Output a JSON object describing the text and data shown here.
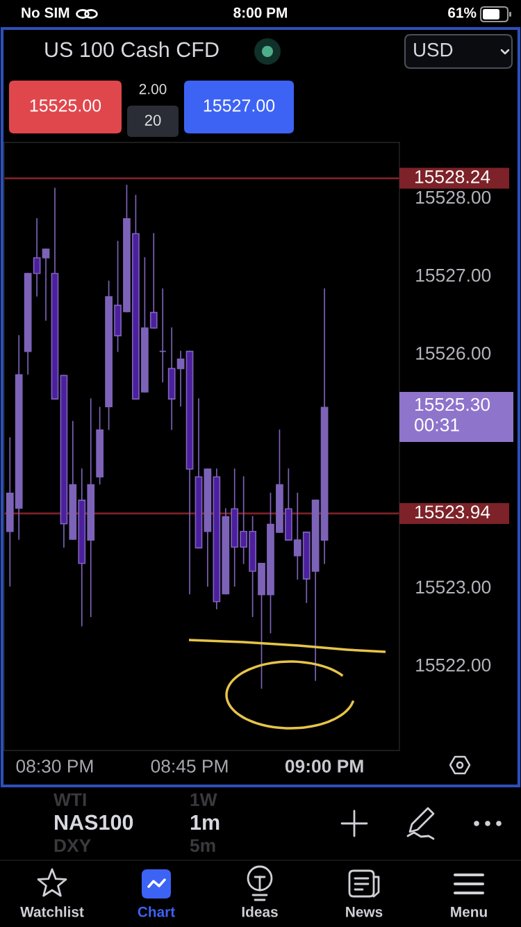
{
  "chart_data": {
    "type": "candlestick",
    "title": "US 100 Cash CFD",
    "x": [
      20.4167,
      20.4333,
      20.45,
      20.4667,
      20.4833,
      20.5,
      20.5167,
      20.5333,
      20.55,
      20.5667,
      20.5833,
      20.6,
      20.6167,
      20.6333,
      20.65,
      20.6667,
      20.6833,
      20.7,
      20.7167,
      20.7333,
      20.75,
      20.7667,
      20.7833,
      20.8,
      20.8167,
      20.8333,
      20.85,
      20.8667,
      20.8833,
      20.9,
      20.9167,
      20.9333,
      20.95,
      20.9667,
      20.9833,
      21
    ],
    "ohlc": [
      [
        15523.71,
        15524.91,
        15523.01,
        15524.2
      ],
      [
        15524.01,
        15526.22,
        15523.61,
        15525.72
      ],
      [
        15526.02,
        15527.02,
        15525.73,
        15527.02
      ],
      [
        15527.22,
        15527.72,
        15526.73,
        15527.02
      ],
      [
        15527.22,
        15527.33,
        15526.42,
        15527.33
      ],
      [
        15527.02,
        15528.11,
        15525.41,
        15525.41
      ],
      [
        15525.71,
        15525.71,
        15523.51,
        15523.81
      ],
      [
        15523.61,
        15525.12,
        15523.61,
        15524.31
      ],
      [
        15524.11,
        15524.51,
        15522.5,
        15523.3
      ],
      [
        15523.6,
        15525.41,
        15522.62,
        15524.31
      ],
      [
        15524.41,
        15525.3,
        15524.32,
        15525.01
      ],
      [
        15525.31,
        15526.92,
        15525.02,
        15526.72
      ],
      [
        15526.61,
        15527.43,
        15526.02,
        15526.22
      ],
      [
        15526.53,
        15528.15,
        15526.53,
        15527.72
      ],
      [
        15527.53,
        15528.02,
        15525.41,
        15525.41
      ],
      [
        15525.5,
        15527.22,
        15525.5,
        15526.32
      ],
      [
        15526.52,
        15527.53,
        15526.32,
        15526.32
      ],
      [
        15526.02,
        15526.82,
        15525.63,
        15526.02
      ],
      [
        15525.8,
        15526.32,
        15525.02,
        15525.41
      ],
      [
        15525.8,
        15526.02,
        15525.32,
        15525.92
      ],
      [
        15526.02,
        15526.02,
        15522.91,
        15524.51
      ],
      [
        15524.41,
        15525.41,
        15523.5,
        15523.5
      ],
      [
        15523.71,
        15524.51,
        15523.01,
        15524.51
      ],
      [
        15524.41,
        15524.51,
        15522.72,
        15522.81
      ],
      [
        15522.91,
        15524.0,
        15522.91,
        15523.9
      ],
      [
        15524.0,
        15524.51,
        15523.01,
        15523.51
      ],
      [
        15523.71,
        15524.41,
        15523.3,
        15523.51
      ],
      [
        15523.71,
        15523.9,
        15522.62,
        15523.2
      ],
      [
        15522.9,
        15523.3,
        15521.7,
        15523.3
      ],
      [
        15522.9,
        15524.2,
        15522.41,
        15523.8
      ],
      [
        15523.7,
        15525.01,
        15523.7,
        15524.31
      ],
      [
        15524.0,
        15524.51,
        15523.6,
        15523.6
      ],
      [
        15523.4,
        15524.2,
        15523.1,
        15523.6
      ],
      [
        15523.7,
        15523.7,
        15522.8,
        15523.1
      ],
      [
        15523.2,
        15524.11,
        15521.8,
        15524.11
      ],
      [
        15523.6,
        15526.82,
        15523.3,
        15525.3
      ]
    ],
    "color": "#7d63b8",
    "colors": [
      "#7d63b8",
      "#7d63b8",
      "#7d63b8",
      "#4b1f9e",
      "#7d63b8",
      "#4b1f9e",
      "#4b1f9e",
      "#7d63b8",
      "#4b1f9e",
      "#7d63b8",
      "#7d63b8",
      "#7d63b8",
      "#4b1f9e",
      "#7d63b8",
      "#4b1f9e",
      "#7d63b8",
      "#4b1f9e",
      "#7d63b8",
      "#4b1f9e",
      "#7d63b8",
      "#4b1f9e",
      "#4b1f9e",
      "#7d63b8",
      "#4b1f9e",
      "#7d63b8",
      "#4b1f9e",
      "#4b1f9e",
      "#4b1f9e",
      "#7d63b8",
      "#7d63b8",
      "#7d63b8",
      "#4b1f9e",
      "#7d63b8",
      "#4b1f9e",
      "#7d63b8",
      "#7d63b8"
    ],
    "xlim": [
      20.406,
      21.139
    ],
    "ylim": [
      15520.9,
      15528.7
    ],
    "xticks": [
      {
        "value": 20.5,
        "label": "08:30 PM"
      },
      {
        "value": 20.75,
        "label": "08:45 PM"
      },
      {
        "value": 21,
        "label": "09:00 PM"
      }
    ],
    "yticks": [
      {
        "value": 15522,
        "label": "15522.00"
      },
      {
        "value": 15523,
        "label": "15523.00"
      },
      {
        "value": 15526,
        "label": "15526.00"
      },
      {
        "value": 15527,
        "label": "15527.00"
      },
      {
        "value": 15528,
        "label": "15528.00"
      }
    ],
    "ref_lines": [
      {
        "axis": "y",
        "value": 15528.24,
        "label": "15528.24",
        "color": "#7d2228"
      },
      {
        "axis": "y",
        "value": 15523.94,
        "label": "15523.94",
        "color": "#7d2228"
      }
    ],
    "annotations": [
      "No SIM",
      "8:00 PM",
      "61%",
      "USD",
      "15525.00",
      "2.00",
      "20",
      "15527.00",
      "15525.30\n00:31",
      "WTI",
      "1W",
      "NAS100",
      "1m",
      "DXY",
      "5m",
      "Watchlist",
      "Chart",
      "Ideas",
      "News",
      "Menu"
    ]
  }
}
